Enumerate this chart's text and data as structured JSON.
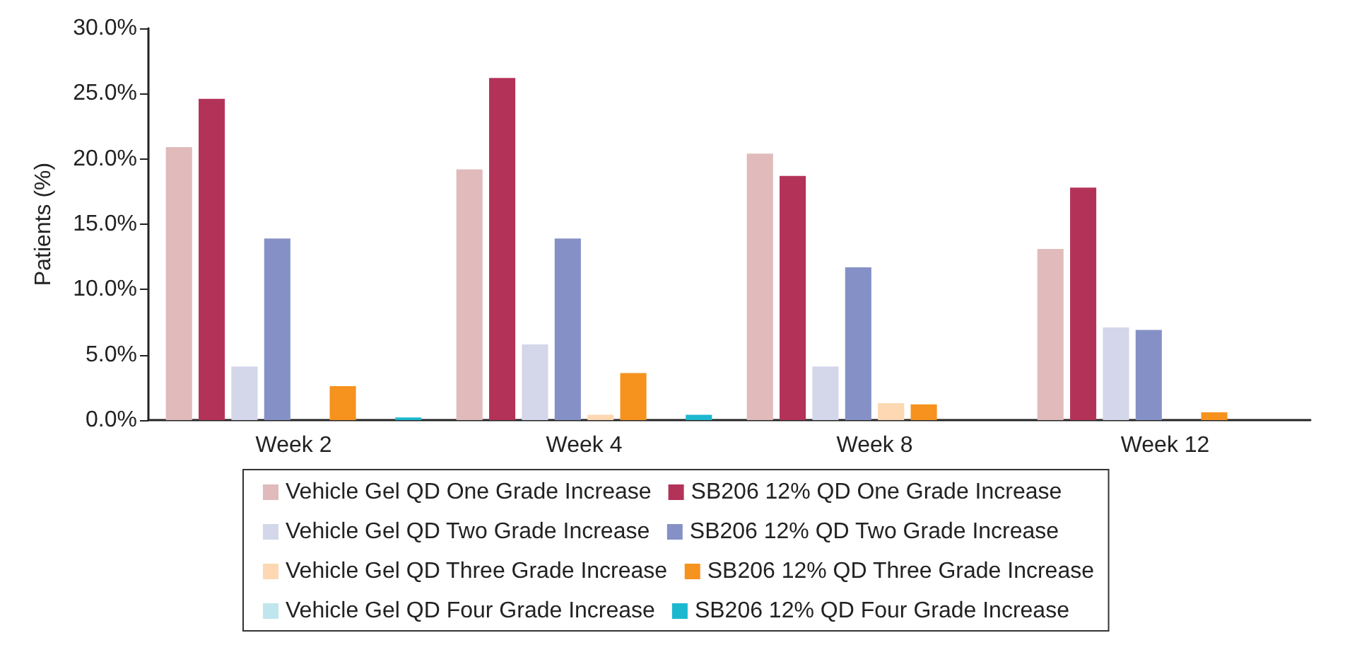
{
  "chart_data": {
    "type": "bar",
    "ylabel": "Patients (%)",
    "categories": [
      "Week 2",
      "Week 4",
      "Week 8",
      "Week 12"
    ],
    "series": [
      {
        "name": "Vehicle Gel QD One Grade Increase",
        "color": "#e1babb",
        "values": [
          20.9,
          19.2,
          20.4,
          13.1
        ]
      },
      {
        "name": "SB206 12% QD One Grade Increase",
        "color": "#b33358",
        "values": [
          24.6,
          26.2,
          18.7,
          17.8
        ]
      },
      {
        "name": "Vehicle Gel QD Two Grade Increase",
        "color": "#d4d6ea",
        "values": [
          4.1,
          5.8,
          4.1,
          7.1
        ]
      },
      {
        "name": "SB206 12% QD Two Grade Increase",
        "color": "#8591c6",
        "values": [
          13.9,
          13.9,
          11.7,
          6.9
        ]
      },
      {
        "name": "Vehicle Gel QD Three Grade Increase",
        "color": "#fdd8b2",
        "values": [
          0,
          0.4,
          1.3,
          0
        ]
      },
      {
        "name": "SB206 12% QD Three Grade Increase",
        "color": "#f6921e",
        "values": [
          2.6,
          3.6,
          1.2,
          0.6
        ]
      },
      {
        "name": "Vehicle Gel QD Four Grade Increase",
        "color": "#bfe6ec",
        "values": [
          0,
          0,
          0,
          0
        ]
      },
      {
        "name": "SB206 12% QD Four Grade Increase",
        "color": "#1cb8d0",
        "values": [
          0.2,
          0.4,
          0,
          0
        ]
      }
    ],
    "ylim": [
      0,
      30
    ],
    "yticks": [
      {
        "value": 0,
        "label": "0.0%"
      },
      {
        "value": 5,
        "label": "5.0%"
      },
      {
        "value": 10,
        "label": "10.0%"
      },
      {
        "value": 15,
        "label": "15.0%"
      },
      {
        "value": 20,
        "label": "20.0%"
      },
      {
        "value": 25,
        "label": "25.0%"
      },
      {
        "value": 30,
        "label": "30.0%"
      }
    ],
    "grid": false,
    "legend": "bottom"
  }
}
